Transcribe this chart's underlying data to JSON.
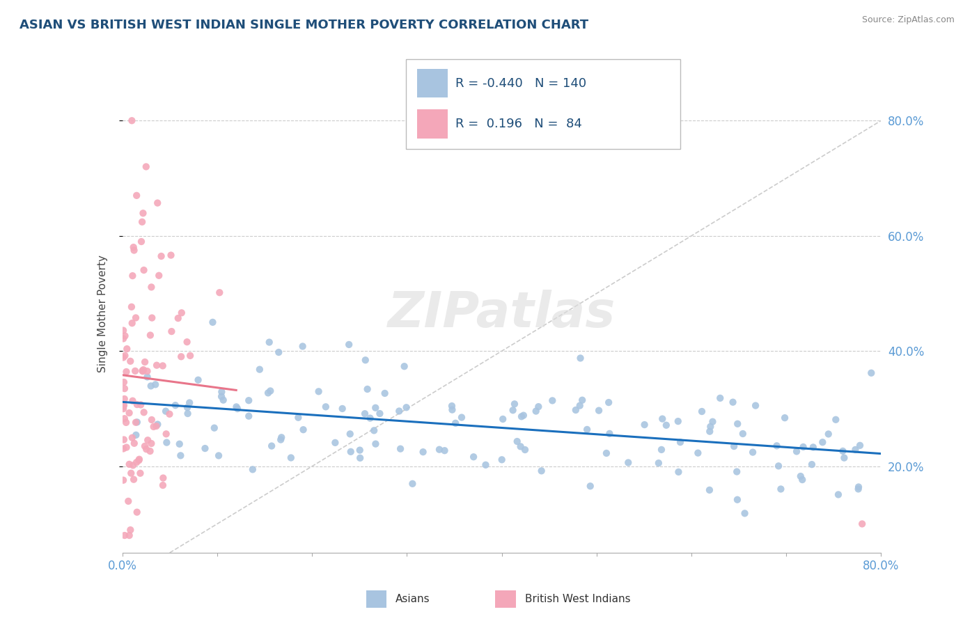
{
  "title": "ASIAN VS BRITISH WEST INDIAN SINGLE MOTHER POVERTY CORRELATION CHART",
  "source": "Source: ZipAtlas.com",
  "ylabel": "Single Mother Poverty",
  "yticks_labels": [
    "20.0%",
    "40.0%",
    "60.0%",
    "80.0%"
  ],
  "ytick_vals": [
    0.2,
    0.4,
    0.6,
    0.8
  ],
  "xmin": 0.0,
  "xmax": 0.8,
  "ymin": 0.05,
  "ymax": 0.88,
  "asian_R": -0.44,
  "asian_N": 140,
  "bwi_R": 0.196,
  "bwi_N": 84,
  "asian_color": "#a8c4e0",
  "bwi_color": "#f4a7b9",
  "asian_line_color": "#1a6fbd",
  "bwi_line_color": "#e8758a",
  "diagonal_color": "#cccccc",
  "watermark": "ZIPatlas",
  "legend_label_asian": "Asians",
  "legend_label_bwi": "British West Indians",
  "title_color": "#1f4e79",
  "tick_color": "#5b9bd5",
  "info_color": "#1f4e79"
}
